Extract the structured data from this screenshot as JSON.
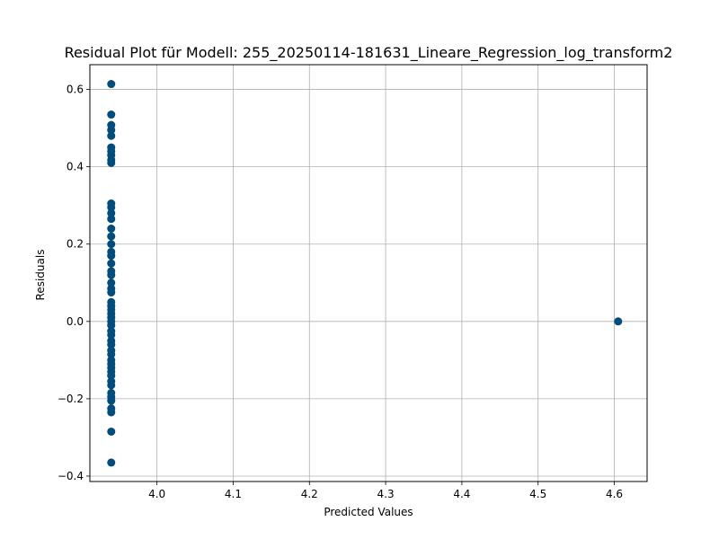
{
  "chart_data": {
    "type": "scatter",
    "title": "Residual Plot für Modell: 255_20250114-181631_Lineare_Regression_log_transform2",
    "xlabel": "Predicted Values",
    "ylabel": "Residuals",
    "xlim": [
      3.912,
      4.643
    ],
    "ylim": [
      -0.414,
      0.664
    ],
    "xticks": [
      4.0,
      4.1,
      4.2,
      4.3,
      4.4,
      4.5,
      4.6
    ],
    "xtick_labels": [
      "4.0",
      "4.1",
      "4.2",
      "4.3",
      "4.4",
      "4.5",
      "4.6"
    ],
    "yticks": [
      -0.4,
      -0.2,
      0.0,
      0.2,
      0.4,
      0.6
    ],
    "ytick_labels": [
      "−0.4",
      "−0.2",
      "0.0",
      "0.2",
      "0.4",
      "0.6"
    ],
    "grid": true,
    "point_color": "#004c7a",
    "points": [
      {
        "x": 3.94,
        "y": 0.614
      },
      {
        "x": 3.94,
        "y": 0.535
      },
      {
        "x": 3.94,
        "y": 0.508
      },
      {
        "x": 3.94,
        "y": 0.495
      },
      {
        "x": 3.94,
        "y": 0.48
      },
      {
        "x": 3.94,
        "y": 0.45
      },
      {
        "x": 3.94,
        "y": 0.44
      },
      {
        "x": 3.94,
        "y": 0.43
      },
      {
        "x": 3.94,
        "y": 0.418
      },
      {
        "x": 3.94,
        "y": 0.41
      },
      {
        "x": 3.94,
        "y": 0.305
      },
      {
        "x": 3.94,
        "y": 0.295
      },
      {
        "x": 3.94,
        "y": 0.28
      },
      {
        "x": 3.94,
        "y": 0.265
      },
      {
        "x": 3.94,
        "y": 0.24
      },
      {
        "x": 3.94,
        "y": 0.22
      },
      {
        "x": 3.94,
        "y": 0.2
      },
      {
        "x": 3.94,
        "y": 0.18
      },
      {
        "x": 3.94,
        "y": 0.17
      },
      {
        "x": 3.94,
        "y": 0.15
      },
      {
        "x": 3.94,
        "y": 0.13
      },
      {
        "x": 3.94,
        "y": 0.12
      },
      {
        "x": 3.94,
        "y": 0.1
      },
      {
        "x": 3.94,
        "y": 0.085
      },
      {
        "x": 3.94,
        "y": 0.075
      },
      {
        "x": 3.94,
        "y": 0.05
      },
      {
        "x": 3.94,
        "y": 0.04
      },
      {
        "x": 3.94,
        "y": 0.03
      },
      {
        "x": 3.94,
        "y": 0.02
      },
      {
        "x": 3.94,
        "y": 0.01
      },
      {
        "x": 3.94,
        "y": 0.0
      },
      {
        "x": 3.94,
        "y": -0.01
      },
      {
        "x": 3.94,
        "y": -0.025
      },
      {
        "x": 3.94,
        "y": -0.035
      },
      {
        "x": 3.94,
        "y": -0.05
      },
      {
        "x": 3.94,
        "y": -0.06
      },
      {
        "x": 3.94,
        "y": -0.075
      },
      {
        "x": 3.94,
        "y": -0.085
      },
      {
        "x": 3.94,
        "y": -0.1
      },
      {
        "x": 3.94,
        "y": -0.11
      },
      {
        "x": 3.94,
        "y": -0.12
      },
      {
        "x": 3.94,
        "y": -0.13
      },
      {
        "x": 3.94,
        "y": -0.14
      },
      {
        "x": 3.94,
        "y": -0.155
      },
      {
        "x": 3.94,
        "y": -0.165
      },
      {
        "x": 3.94,
        "y": -0.185
      },
      {
        "x": 3.94,
        "y": -0.195
      },
      {
        "x": 3.94,
        "y": -0.205
      },
      {
        "x": 3.94,
        "y": -0.225
      },
      {
        "x": 3.94,
        "y": -0.235
      },
      {
        "x": 3.94,
        "y": -0.285
      },
      {
        "x": 3.94,
        "y": -0.365
      },
      {
        "x": 4.605,
        "y": 0.0
      }
    ]
  }
}
